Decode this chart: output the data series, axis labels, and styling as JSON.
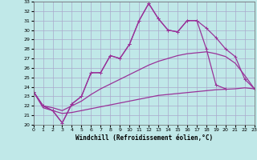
{
  "xlabel": "Windchill (Refroidissement éolien,°C)",
  "background_color": "#c0e8e8",
  "grid_color": "#aaaacc",
  "line_color": "#993399",
  "xlim": [
    0,
    23
  ],
  "ylim": [
    20,
    33
  ],
  "xticks": [
    0,
    1,
    2,
    3,
    4,
    5,
    6,
    7,
    8,
    9,
    10,
    11,
    12,
    13,
    14,
    15,
    16,
    17,
    18,
    19,
    20,
    21,
    22,
    23
  ],
  "yticks": [
    20,
    21,
    22,
    23,
    24,
    25,
    26,
    27,
    28,
    29,
    30,
    31,
    32,
    33
  ],
  "s1_x": [
    0,
    1,
    2,
    3,
    4,
    5,
    6,
    7,
    8,
    9,
    10,
    11,
    12,
    13,
    14,
    15,
    16,
    17,
    18,
    19,
    20,
    21,
    22,
    23
  ],
  "s1_y": [
    23.5,
    22.0,
    21.5,
    20.2,
    22.2,
    23.0,
    25.5,
    25.5,
    27.3,
    27.0,
    28.5,
    31.0,
    32.8,
    31.2,
    30.0,
    29.8,
    31.0,
    31.0,
    30.2,
    29.2,
    28.0,
    27.2,
    24.8,
    23.8
  ],
  "s2_x": [
    0,
    1,
    2,
    3,
    4,
    5,
    6,
    7,
    8,
    9,
    10,
    11,
    12,
    13,
    14,
    15,
    16,
    17,
    18,
    19,
    20
  ],
  "s2_y": [
    23.5,
    22.0,
    21.5,
    20.2,
    22.2,
    23.0,
    25.5,
    25.5,
    27.3,
    27.0,
    28.5,
    31.0,
    32.8,
    31.2,
    30.0,
    29.8,
    31.0,
    31.0,
    28.0,
    24.2,
    23.8
  ],
  "s3_x": [
    0,
    1,
    2,
    3,
    4,
    5,
    6,
    7,
    8,
    9,
    10,
    11,
    12,
    13,
    14,
    15,
    16,
    17,
    18,
    19,
    20,
    21,
    22,
    23
  ],
  "s3_y": [
    23.5,
    21.8,
    21.5,
    21.2,
    21.3,
    21.5,
    21.7,
    21.9,
    22.1,
    22.3,
    22.5,
    22.7,
    22.9,
    23.1,
    23.2,
    23.3,
    23.4,
    23.5,
    23.6,
    23.7,
    23.75,
    23.8,
    23.9,
    23.8
  ],
  "s4_x": [
    0,
    1,
    2,
    3,
    4,
    5,
    6,
    7,
    8,
    9,
    10,
    11,
    12,
    13,
    14,
    15,
    16,
    17,
    18,
    19,
    20,
    21,
    22,
    23
  ],
  "s4_y": [
    23.5,
    22.0,
    21.8,
    21.5,
    22.0,
    22.5,
    23.2,
    23.8,
    24.3,
    24.8,
    25.3,
    25.8,
    26.3,
    26.7,
    27.0,
    27.3,
    27.5,
    27.6,
    27.7,
    27.5,
    27.2,
    26.5,
    25.2,
    23.8
  ]
}
